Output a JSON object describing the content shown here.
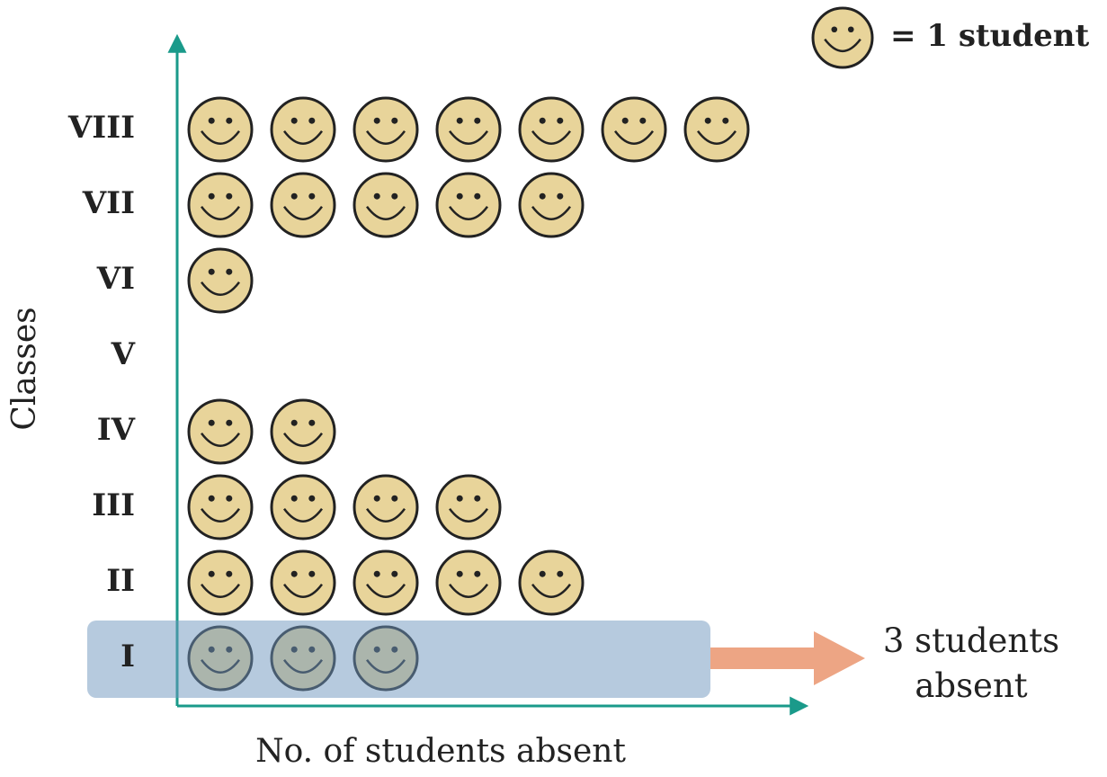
{
  "chart_data": {
    "type": "pictograph",
    "x_label": "No. of students absent",
    "y_label": "Classes",
    "legend": "= 1 student",
    "categories": [
      "I",
      "II",
      "III",
      "IV",
      "V",
      "VI",
      "VII",
      "VIII"
    ],
    "values": [
      3,
      5,
      4,
      2,
      0,
      1,
      5,
      7
    ],
    "color": "#e8d49a",
    "highlight": "I",
    "annotation": "3 students absent"
  }
}
